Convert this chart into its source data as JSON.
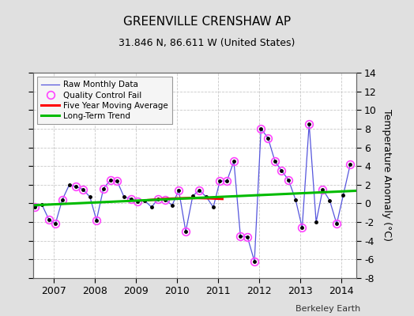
{
  "title": "GREENVILLE CRENSHAW AP",
  "subtitle": "31.846 N, 86.611 W (United States)",
  "ylabel": "Temperature Anomaly (°C)",
  "attribution": "Berkeley Earth",
  "ylim": [
    -8,
    14
  ],
  "yticks": [
    -8,
    -6,
    -4,
    -2,
    0,
    2,
    4,
    6,
    8,
    10,
    12,
    14
  ],
  "xlim": [
    2006.5,
    2014.35
  ],
  "fig_bg": "#e0e0e0",
  "plot_bg": "#ffffff",
  "raw_x": [
    2006.54,
    2006.71,
    2006.88,
    2007.04,
    2007.21,
    2007.38,
    2007.54,
    2007.71,
    2007.88,
    2008.04,
    2008.21,
    2008.38,
    2008.54,
    2008.71,
    2008.88,
    2009.04,
    2009.21,
    2009.38,
    2009.54,
    2009.71,
    2009.88,
    2010.04,
    2010.21,
    2010.38,
    2010.54,
    2010.71,
    2010.88,
    2011.04,
    2011.21,
    2011.38,
    2011.54,
    2011.71,
    2011.88,
    2012.04,
    2012.21,
    2012.38,
    2012.54,
    2012.71,
    2012.88,
    2013.04,
    2013.21,
    2013.38,
    2013.54,
    2013.71,
    2013.88,
    2014.04,
    2014.21
  ],
  "raw_y": [
    -0.4,
    -0.1,
    -1.7,
    -2.2,
    0.4,
    2.0,
    1.8,
    1.5,
    0.7,
    -1.8,
    1.6,
    2.5,
    2.4,
    0.7,
    0.5,
    0.2,
    0.3,
    -0.4,
    0.5,
    0.4,
    -0.2,
    1.4,
    -3.0,
    0.8,
    1.4,
    0.7,
    -0.4,
    2.4,
    2.4,
    4.5,
    -3.5,
    -3.6,
    -6.2,
    8.0,
    7.0,
    4.5,
    3.5,
    2.5,
    0.4,
    -2.6,
    8.5,
    -2.0,
    1.5,
    0.3,
    -2.2,
    0.9,
    4.2
  ],
  "qc_x": [
    2006.54,
    2006.88,
    2007.04,
    2007.21,
    2007.54,
    2007.71,
    2008.04,
    2008.21,
    2008.38,
    2008.54,
    2008.88,
    2009.04,
    2009.54,
    2009.71,
    2010.04,
    2010.21,
    2010.54,
    2011.04,
    2011.21,
    2011.38,
    2011.54,
    2011.71,
    2011.88,
    2012.04,
    2012.21,
    2012.38,
    2012.54,
    2012.71,
    2013.04,
    2013.21,
    2013.54,
    2013.88,
    2014.21
  ],
  "qc_y": [
    -0.4,
    -1.7,
    -2.2,
    0.4,
    1.8,
    1.5,
    -1.8,
    1.6,
    2.5,
    2.4,
    0.5,
    0.2,
    0.5,
    0.4,
    1.4,
    -3.0,
    1.4,
    2.4,
    2.4,
    4.5,
    -3.5,
    -3.6,
    -6.2,
    8.0,
    7.0,
    4.5,
    3.5,
    2.5,
    -2.6,
    8.5,
    1.5,
    -2.2,
    4.2
  ],
  "ma_x": [
    2009.3,
    2009.5,
    2009.7,
    2009.9,
    2010.1,
    2010.3,
    2010.5,
    2010.7,
    2010.9,
    2011.1
  ],
  "ma_y": [
    0.35,
    0.42,
    0.48,
    0.52,
    0.55,
    0.57,
    0.57,
    0.55,
    0.52,
    0.48
  ],
  "trend_x": [
    2006.5,
    2014.35
  ],
  "trend_y": [
    -0.2,
    1.35
  ],
  "line_color": "#5555dd",
  "dot_color": "#000000",
  "qc_color": "#ff44ff",
  "ma_color": "#ff0000",
  "trend_color": "#00bb00",
  "grid_color": "#c8c8c8"
}
